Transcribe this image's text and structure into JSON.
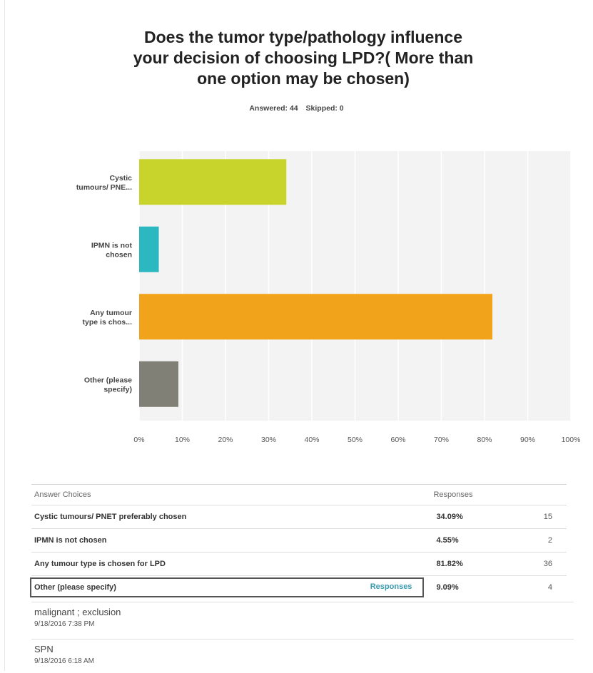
{
  "survey": {
    "question_lines": [
      "Does the tumor type/pathology influence",
      "your decision of choosing LPD?( More than",
      "one option may be chosen)"
    ],
    "answered_label": "Answered: 44",
    "skipped_label": "Skipped: 0"
  },
  "chart_data": {
    "type": "bar",
    "orientation": "horizontal",
    "categories": [
      [
        "Cystic",
        "tumours/ PNE..."
      ],
      [
        "IPMN is not",
        "chosen"
      ],
      [
        "Any tumour",
        "type is chos..."
      ],
      [
        "Other (please",
        "specify)"
      ]
    ],
    "values": [
      34.09,
      4.55,
      81.82,
      9.09
    ],
    "value_unit": "%",
    "xlim": [
      0,
      100
    ],
    "x_ticks": [
      "0%",
      "10%",
      "20%",
      "30%",
      "40%",
      "50%",
      "60%",
      "70%",
      "80%",
      "90%",
      "100%"
    ],
    "colors": [
      "#c8d42c",
      "#2cb8c0",
      "#f2a31c",
      "#808076"
    ],
    "grid": true
  },
  "table": {
    "headers": [
      "Answer Choices",
      "Responses"
    ],
    "rows": [
      {
        "choice": "Cystic tumours/ PNET preferably chosen",
        "pct": "34.09%",
        "count": "15"
      },
      {
        "choice": "IPMN is not chosen",
        "pct": "4.55%",
        "count": "2"
      },
      {
        "choice": "Any tumour type is chosen for LPD",
        "pct": "81.82%",
        "count": "36"
      },
      {
        "choice": "Other (please specify)",
        "pct": "9.09%",
        "count": "4",
        "link": "Responses"
      }
    ]
  },
  "comments": [
    {
      "text": "malignant ; exclusion",
      "time": "9/18/2016 7:38 PM"
    },
    {
      "text": "SPN",
      "time": "9/18/2016 6:18 AM"
    }
  ]
}
